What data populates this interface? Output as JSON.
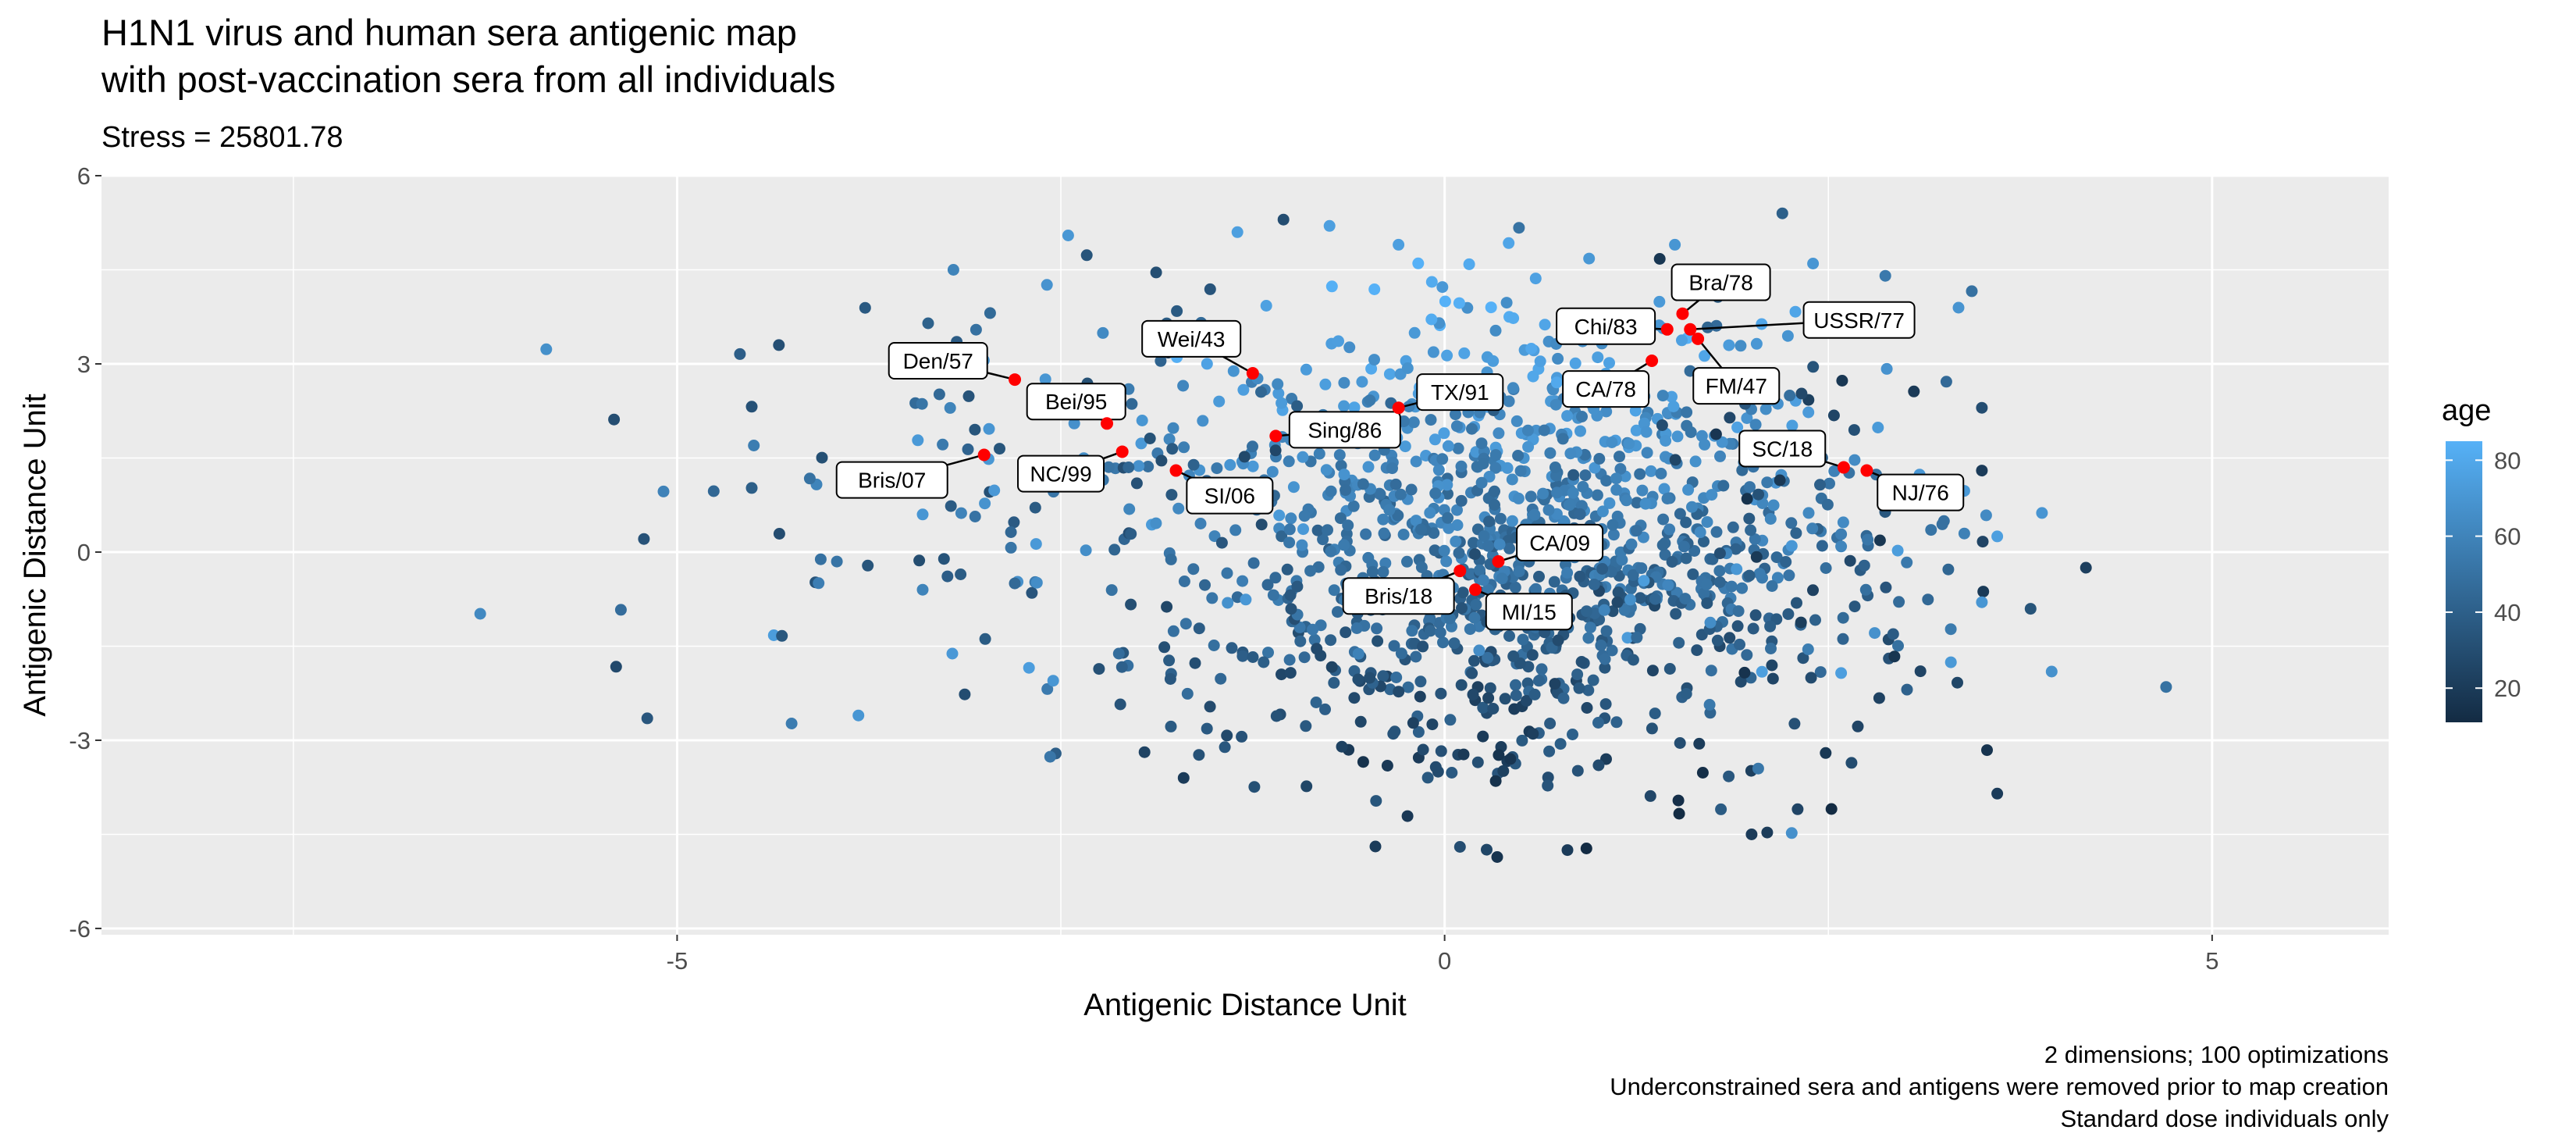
{
  "chart_data": {
    "type": "scatter",
    "title": "H1N1 virus and human sera antigenic map",
    "title_line2": "with post-vaccination sera from all individuals",
    "subtitle": "Stress = 25801.78",
    "xlabel": "Antigenic Distance Unit",
    "ylabel": "Antigenic Distance Unit",
    "xlim": [
      -8.75,
      6.15
    ],
    "ylim": [
      -6.1,
      6.0
    ],
    "x_ticks": [
      -5,
      0,
      5
    ],
    "x_tick_labels": [
      "-5",
      "0",
      "5"
    ],
    "y_ticks": [
      -6,
      -3,
      0,
      3,
      6
    ],
    "y_tick_labels": [
      "-6",
      "-3",
      "0",
      "3",
      "6"
    ],
    "grid": true,
    "panel_background": "#ebebeb",
    "captions": [
      "2 dimensions; 100 optimizations",
      "Underconstrained sera and antigens were removed prior to map creation",
      "Standard dose individuals only"
    ],
    "legend": {
      "title": "age",
      "placement": "right",
      "range": [
        11,
        85
      ],
      "ticks": [
        20,
        40,
        60,
        80
      ],
      "tick_labels": [
        "20",
        "40",
        "60",
        "80"
      ],
      "low_color": "#132b43",
      "high_color": "#56b1f7"
    },
    "antigen_color": "#ff0000",
    "antigens": [
      {
        "name": "Den/57",
        "x": -2.8,
        "y": 2.75,
        "lx": -3.3,
        "ly": 3.05
      },
      {
        "name": "Bei/95",
        "x": -2.2,
        "y": 2.05,
        "lx": -2.4,
        "ly": 2.4
      },
      {
        "name": "Bris/07",
        "x": -3.0,
        "y": 1.55,
        "lx": -3.6,
        "ly": 1.15
      },
      {
        "name": "NC/99",
        "x": -2.1,
        "y": 1.6,
        "lx": -2.5,
        "ly": 1.25
      },
      {
        "name": "Wei/43",
        "x": -1.25,
        "y": 2.85,
        "lx": -1.65,
        "ly": 3.4
      },
      {
        "name": "SI/06",
        "x": -1.75,
        "y": 1.3,
        "lx": -1.4,
        "ly": 0.9
      },
      {
        "name": "Sing/86",
        "x": -1.1,
        "y": 1.85,
        "lx": -0.65,
        "ly": 1.95
      },
      {
        "name": "TX/91",
        "x": -0.3,
        "y": 2.3,
        "lx": 0.1,
        "ly": 2.55
      },
      {
        "name": "CA/78",
        "x": 1.35,
        "y": 3.05,
        "lx": 1.05,
        "ly": 2.6
      },
      {
        "name": "Chi/83",
        "x": 1.45,
        "y": 3.55,
        "lx": 1.05,
        "ly": 3.6
      },
      {
        "name": "Bra/78",
        "x": 1.55,
        "y": 3.8,
        "lx": 1.8,
        "ly": 4.3
      },
      {
        "name": "USSR/77",
        "x": 1.6,
        "y": 3.55,
        "lx": 2.7,
        "ly": 3.7
      },
      {
        "name": "FM/47",
        "x": 1.65,
        "y": 3.4,
        "lx": 1.9,
        "ly": 2.65
      },
      {
        "name": "SC/18",
        "x": 2.6,
        "y": 1.35,
        "lx": 2.2,
        "ly": 1.65
      },
      {
        "name": "NJ/76",
        "x": 2.75,
        "y": 1.3,
        "lx": 3.1,
        "ly": 0.95
      },
      {
        "name": "CA/09",
        "x": 0.35,
        "y": -0.15,
        "lx": 0.75,
        "ly": 0.15
      },
      {
        "name": "Bris/18",
        "x": 0.1,
        "y": -0.3,
        "lx": -0.3,
        "ly": -0.7
      },
      {
        "name": "MI/15",
        "x": 0.2,
        "y": -0.6,
        "lx": 0.55,
        "ly": -0.95
      }
    ],
    "sera_sample": [
      [
        -3.4,
        0.6,
        70
      ],
      [
        -3.4,
        -0.6,
        60
      ],
      [
        -3.2,
        4.5,
        60
      ],
      [
        -2.8,
        -0.5,
        45
      ],
      [
        -2.55,
        -2.05,
        70
      ],
      [
        -1.7,
        -3.6,
        20
      ],
      [
        -1.35,
        5.1,
        75
      ],
      [
        -1.05,
        5.3,
        30
      ],
      [
        -0.75,
        5.2,
        75
      ],
      [
        -0.3,
        4.9,
        75
      ],
      [
        0.1,
        -4.7,
        30
      ],
      [
        0.8,
        -4.75,
        20
      ],
      [
        1.5,
        4.9,
        70
      ],
      [
        2.2,
        5.4,
        40
      ],
      [
        2.4,
        4.6,
        70
      ],
      [
        3.5,
        2.3,
        30
      ],
      [
        3.5,
        1.3,
        20
      ],
      [
        3.1,
        -1.9,
        25
      ],
      [
        3.5,
        -0.8,
        70
      ],
      [
        3.6,
        0.25,
        75
      ],
      [
        3.6,
        -3.85,
        20
      ],
      [
        4.7,
        -2.15,
        50
      ],
      [
        2.0,
        -4.5,
        20
      ],
      [
        2.3,
        -4.1,
        25
      ]
    ]
  }
}
